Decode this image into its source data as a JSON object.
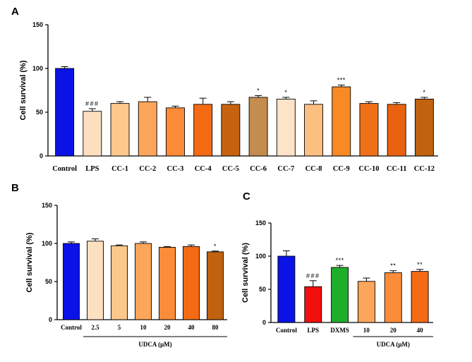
{
  "chart_data": [
    {
      "panel": "A",
      "type": "bar",
      "ylabel": "Cell survival (%)",
      "ylim": [
        0,
        150
      ],
      "yticks": [
        0,
        50,
        100,
        150
      ],
      "categories": [
        "Control",
        "LPS",
        "CC-1",
        "CC-2",
        "CC-3",
        "CC-4",
        "CC-5",
        "CC-6",
        "CC-7",
        "CC-8",
        "CC-9",
        "CC-10",
        "CC-11",
        "CC-12"
      ],
      "values": [
        100,
        51,
        60,
        62,
        55,
        59,
        59,
        67,
        65,
        59,
        79,
        60,
        59,
        65
      ],
      "errors": [
        2,
        3,
        2,
        5,
        2,
        7,
        3,
        2,
        2,
        4,
        2,
        2,
        2,
        2
      ],
      "colors": [
        "#0b12e6",
        "#fde0c0",
        "#fdc88c",
        "#fda55a",
        "#fd8c38",
        "#f56a14",
        "#c7630f",
        "#c48c4e",
        "#fde3c8",
        "#fbbf80",
        "#f88a24",
        "#f07018",
        "#ea6210",
        "#c0620f"
      ],
      "significance": [
        "",
        "###",
        "",
        "",
        "",
        "",
        "",
        "*",
        "*",
        "",
        "***",
        "",
        "",
        "*"
      ],
      "sig_colors": [
        "#000000",
        "#000000",
        "#000000",
        "#000000",
        "#000000",
        "#000000",
        "#000000",
        "#000000",
        "#000000",
        "#000000",
        "#000000",
        "#000000",
        "#000000",
        "#000000"
      ]
    },
    {
      "panel": "B",
      "type": "bar",
      "ylabel": "Cell survival (%)",
      "ylim": [
        0,
        150
      ],
      "yticks": [
        0,
        50,
        100,
        150
      ],
      "categories": [
        "Control",
        "2.5",
        "5",
        "10",
        "20",
        "40",
        "80"
      ],
      "values": [
        100,
        103,
        97,
        100,
        95,
        96,
        89
      ],
      "errors": [
        2,
        3,
        1,
        2,
        1,
        2,
        1
      ],
      "colors": [
        "#0b12e6",
        "#fde0c0",
        "#fdc88c",
        "#fda55a",
        "#fd8c38",
        "#f56a14",
        "#c0620f"
      ],
      "significance": [
        "",
        "",
        "",
        "",
        "",
        "",
        "*"
      ],
      "sig_colors": [
        "#000000",
        "#000000",
        "#000000",
        "#000000",
        "#000000",
        "#000000",
        "#888888"
      ],
      "group_label": "UDCA (μM)",
      "group_span": [
        1,
        6
      ]
    },
    {
      "panel": "C",
      "type": "bar",
      "ylabel": "Cell survival (%)",
      "ylim": [
        0,
        150
      ],
      "yticks": [
        0,
        50,
        100,
        150
      ],
      "categories": [
        "Control",
        "LPS",
        "DXMS",
        "10",
        "20",
        "40"
      ],
      "values": [
        100,
        54,
        83,
        62,
        75,
        77
      ],
      "errors": [
        8,
        9,
        3,
        5,
        3,
        3
      ],
      "colors": [
        "#0b12e6",
        "#f20f0f",
        "#1fae2c",
        "#fda55a",
        "#fd8c38",
        "#f56a14"
      ],
      "significance": [
        "",
        "###",
        "***",
        "",
        "**",
        "**"
      ],
      "sig_colors": [
        "#000000",
        "#888888",
        "#888888",
        "#000000",
        "#888888",
        "#888888"
      ],
      "group_label": "UDCA (μM)",
      "group_span": [
        3,
        5
      ]
    }
  ]
}
